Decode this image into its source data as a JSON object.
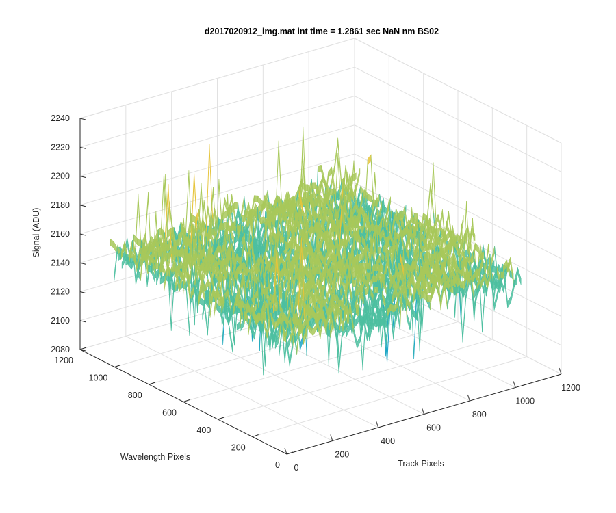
{
  "chart_data": {
    "type": "surface",
    "title": "d2017020912_img.mat int time = 1.2861 sec  NaN nm BS02",
    "xlabel": "Track Pixels",
    "ylabel": "Wavelength Pixels",
    "zlabel": "Signal (ADU)",
    "xlim": [
      0,
      1200
    ],
    "ylim": [
      0,
      1200
    ],
    "zlim": [
      2080,
      2240
    ],
    "xticks": [
      0,
      200,
      400,
      600,
      800,
      1000,
      1200
    ],
    "yticks": [
      0,
      200,
      400,
      600,
      800,
      1000,
      1200
    ],
    "zticks": [
      2080,
      2100,
      2120,
      2140,
      2160,
      2180,
      2200,
      2220,
      2240
    ],
    "x_tick_labels": [
      "0",
      "200",
      "400",
      "600",
      "800",
      "1000",
      "1200"
    ],
    "y_tick_labels": [
      "0",
      "200",
      "400",
      "600",
      "800",
      "1000",
      "1200"
    ],
    "z_tick_labels": [
      "2080",
      "2100",
      "2120",
      "2140",
      "2160",
      "2180",
      "2200",
      "2220",
      "2240"
    ],
    "surface_x_range": [
      0,
      1024
    ],
    "surface_y_range": [
      0,
      1024
    ],
    "signal_mean": 2160,
    "signal_range": [
      2095,
      2225
    ],
    "grid": true,
    "colormap": [
      "#0072bd",
      "#1da6c8",
      "#4dbfa0",
      "#a8c85a",
      "#e6c43a",
      "#f2d23a"
    ]
  }
}
